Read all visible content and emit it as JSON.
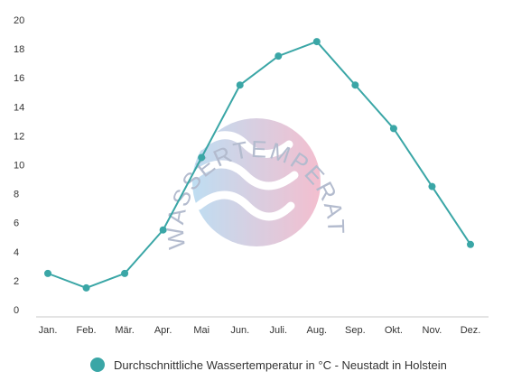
{
  "watermark": {
    "text": "WASSERTEMPERATUR.ORG"
  },
  "chart_data": {
    "type": "line",
    "categories": [
      "Jan.",
      "Feb.",
      "Mär.",
      "Apr.",
      "Mai",
      "Jun.",
      "Juli.",
      "Aug.",
      "Sep.",
      "Okt.",
      "Nov.",
      "Dez."
    ],
    "series": [
      {
        "name": "Durchschnittliche Wassertemperatur in °C - Neustadt in Holstein",
        "values": [
          2.5,
          1.5,
          2.5,
          5.5,
          10.5,
          15.5,
          17.5,
          18.5,
          15.5,
          12.5,
          8.5,
          4.5
        ],
        "color": "#3aa6a6"
      }
    ],
    "ylim": [
      0,
      20
    ],
    "yticks": [
      "0",
      "2",
      "4",
      "6",
      "8",
      "10",
      "12",
      "14",
      "16",
      "18",
      "20"
    ],
    "grid": false,
    "legend_position": "bottom-center",
    "title": "",
    "xlabel": "",
    "ylabel": ""
  }
}
